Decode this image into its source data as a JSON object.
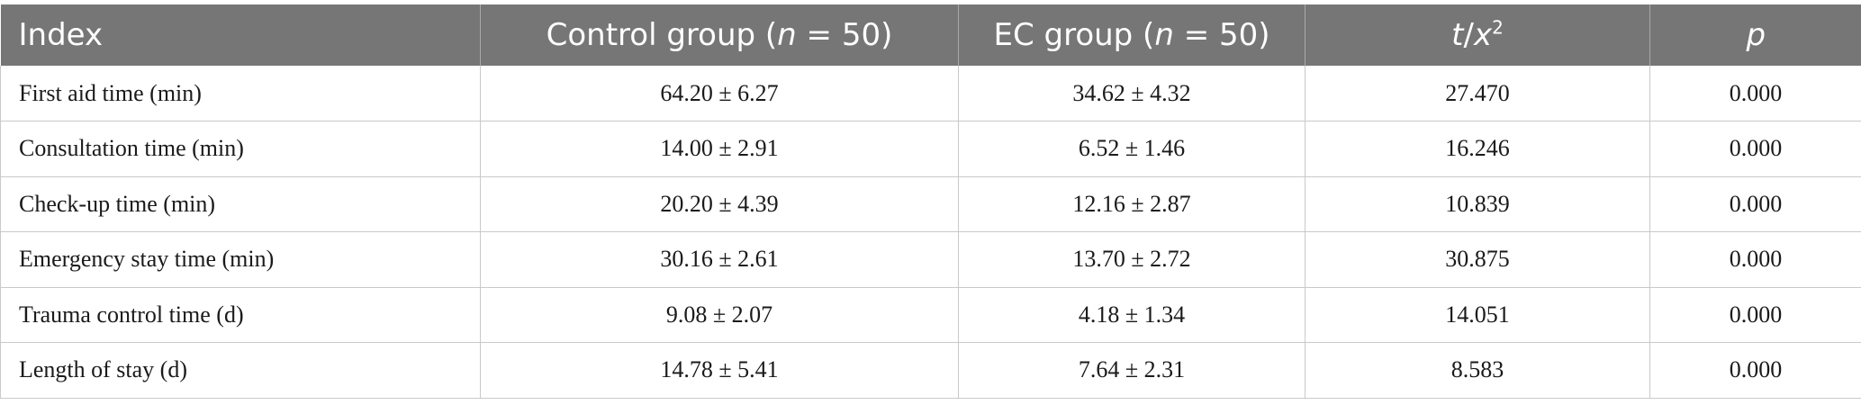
{
  "table": {
    "headers": {
      "index": "Index",
      "control_prefix": "Control group (",
      "control_n": "n",
      "control_suffix": " = 50)",
      "ec_prefix": "EC group (",
      "ec_n": "n",
      "ec_suffix": " = 50)",
      "stat_t": "t",
      "stat_slash": "/",
      "stat_x": "x",
      "stat_sup": "2",
      "p": "p"
    },
    "rows": [
      {
        "index": "First aid time (min)",
        "control": "64.20 ± 6.27",
        "ec": "34.62 ± 4.32",
        "stat": "27.470",
        "p": "0.000"
      },
      {
        "index": "Consultation time (min)",
        "control": "14.00 ± 2.91",
        "ec": "6.52 ± 1.46",
        "stat": "16.246",
        "p": "0.000"
      },
      {
        "index": "Check-up time (min)",
        "control": "20.20 ± 4.39",
        "ec": "12.16 ± 2.87",
        "stat": "10.839",
        "p": "0.000"
      },
      {
        "index": "Emergency stay time (min)",
        "control": "30.16 ± 2.61",
        "ec": "13.70 ± 2.72",
        "stat": "30.875",
        "p": "0.000"
      },
      {
        "index": "Trauma control time (d)",
        "control": "9.08 ± 2.07",
        "ec": "4.18 ± 1.34",
        "stat": "14.051",
        "p": "0.000"
      },
      {
        "index": "Length of stay (d)",
        "control": "14.78 ± 5.41",
        "ec": "7.64 ± 2.31",
        "stat": "8.583",
        "p": "0.000"
      }
    ]
  }
}
